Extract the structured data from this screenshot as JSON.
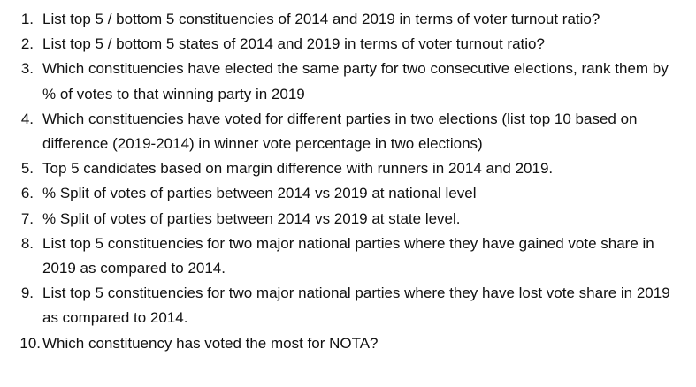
{
  "questions": [
    {
      "number": "1.",
      "text": "List top 5 / bottom 5 constituencies of 2014 and 2019 in terms of voter turnout ratio?"
    },
    {
      "number": "2.",
      "text": "List top 5 / bottom 5 states of 2014 and 2019 in terms of voter turnout ratio?"
    },
    {
      "number": "3.",
      "text": "Which constituencies have elected the same party for two consecutive elections, rank them by % of votes to that winning party in 2019"
    },
    {
      "number": "4.",
      "text": "Which constituencies have voted for different parties in two elections (list top 10 based on difference (2019-2014) in winner vote percentage in two elections)"
    },
    {
      "number": "5.",
      "text": "Top 5 candidates based on margin difference with runners in 2014 and 2019."
    },
    {
      "number": "6.",
      "text": "% Split of votes of parties between 2014 vs 2019 at national level"
    },
    {
      "number": "7.",
      "text": "% Split of votes of parties between 2014 vs 2019 at state level."
    },
    {
      "number": "8.",
      "text": "List top 5 constituencies for two major national parties where they have gained vote share in 2019 as compared to 2014."
    },
    {
      "number": "9.",
      "text": "List top 5 constituencies for two major national parties where they have lost vote share in 2019 as compared to 2014."
    },
    {
      "number": "10.",
      "text": "Which constituency has voted the most for NOTA?"
    }
  ]
}
